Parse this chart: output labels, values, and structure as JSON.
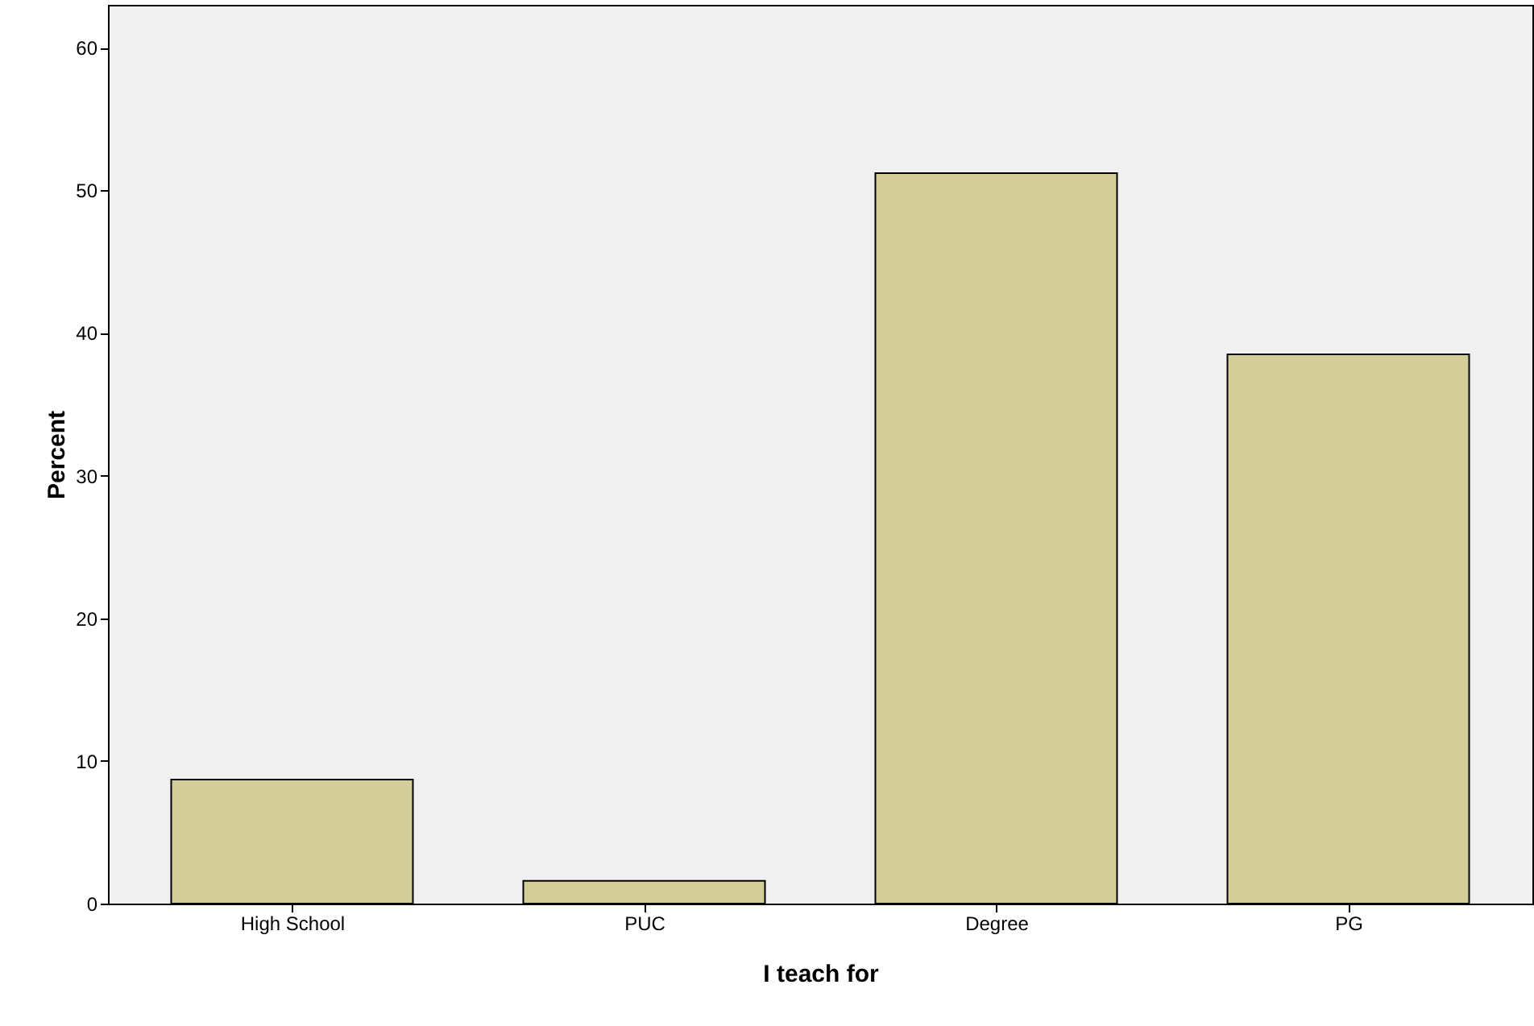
{
  "chart_data": {
    "type": "bar",
    "xlabel": "I teach for",
    "ylabel": "Percent",
    "categories": [
      "High School",
      "PUC",
      "Degree",
      "PG"
    ],
    "values": [
      8.7,
      1.6,
      51.2,
      38.5
    ],
    "color": "#d3ce98",
    "ylim": [
      0,
      63
    ],
    "yticks": [
      0,
      10,
      20,
      30,
      40,
      50,
      60
    ],
    "grid": false
  }
}
